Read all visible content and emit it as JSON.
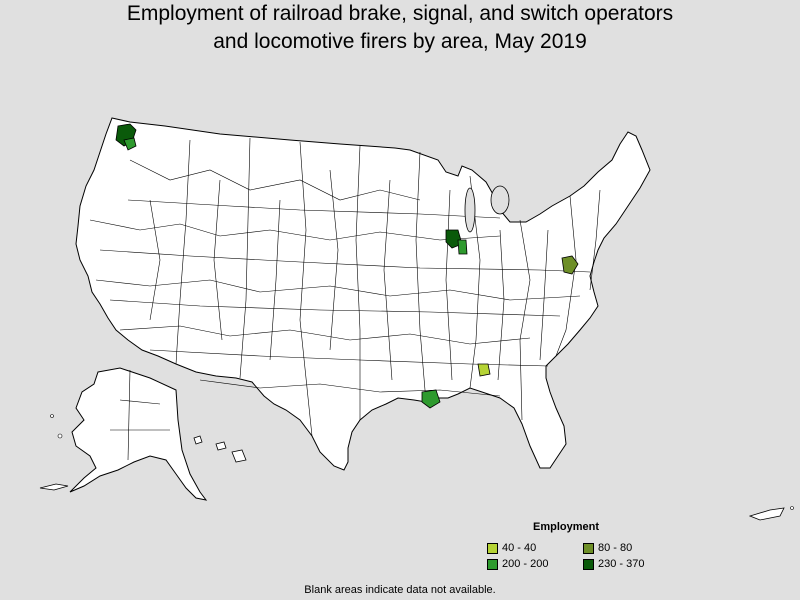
{
  "title_line1": "Employment of railroad brake, signal, and switch operators",
  "title_line2": "and locomotive firers by area, May 2019",
  "legend": {
    "title": "Employment",
    "items": [
      {
        "label": "40 - 40",
        "color": "#b5d335"
      },
      {
        "label": "80 - 80",
        "color": "#6e8f28"
      },
      {
        "label": "200 - 200",
        "color": "#2e9a2e"
      },
      {
        "label": "230 - 370",
        "color": "#0a5a0a"
      }
    ]
  },
  "footnote": "Blank areas indicate data not available.",
  "map": {
    "base_fill": "#ffffff",
    "border_color": "#000000",
    "highlighted_areas": [
      {
        "name": "Seattle area",
        "class": "230 - 370"
      },
      {
        "name": "Chicago area",
        "class": "230 - 370"
      },
      {
        "name": "Northwest Indiana area",
        "class": "200 - 200"
      },
      {
        "name": "Baton Rouge area",
        "class": "200 - 200"
      },
      {
        "name": "Washington DC area",
        "class": "80 - 80"
      },
      {
        "name": "Birmingham area",
        "class": "40 - 40"
      }
    ]
  }
}
